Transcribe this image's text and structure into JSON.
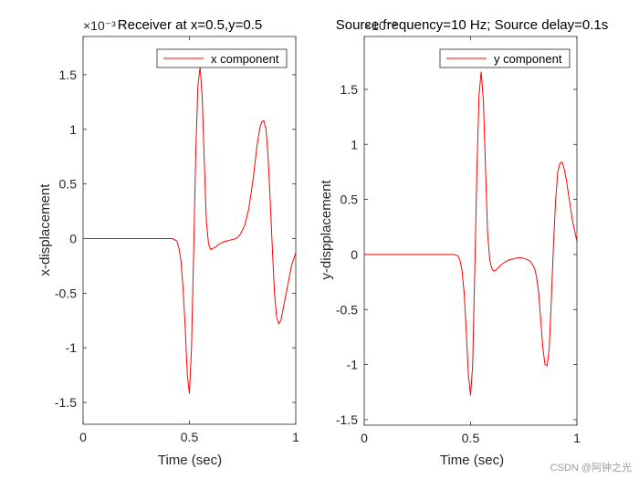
{
  "chart_data": [
    {
      "type": "line",
      "title": "Receiver at x=0.5,y=0.5",
      "xlabel": "Time (sec)",
      "ylabel": "x-displacement",
      "exponent_label": "×10⁻³",
      "xlim": [
        0,
        1
      ],
      "ylim": [
        -1.7,
        1.85
      ],
      "xticks": [
        0,
        0.5,
        1
      ],
      "xtick_labels": [
        "0",
        "0.5",
        "1"
      ],
      "yticks": [
        -1.5,
        -1,
        -0.5,
        0,
        0.5,
        1,
        1.5
      ],
      "ytick_labels": [
        "-1.5",
        "-1",
        "-0.5",
        "0",
        "0.5",
        "1",
        "1.5"
      ],
      "legend": "top-right",
      "series": [
        {
          "name": "x component",
          "color": "#ff0000",
          "x": [
            0,
            0.05,
            0.1,
            0.15,
            0.2,
            0.25,
            0.3,
            0.35,
            0.4,
            0.42,
            0.44,
            0.45,
            0.46,
            0.47,
            0.48,
            0.49,
            0.5,
            0.51,
            0.52,
            0.53,
            0.54,
            0.55,
            0.56,
            0.57,
            0.58,
            0.59,
            0.6,
            0.62,
            0.64,
            0.66,
            0.68,
            0.7,
            0.72,
            0.74,
            0.76,
            0.78,
            0.8,
            0.81,
            0.82,
            0.83,
            0.84,
            0.85,
            0.86,
            0.87,
            0.88,
            0.89,
            0.9,
            0.91,
            0.92,
            0.93,
            0.94,
            0.96,
            0.98,
            1
          ],
          "y": [
            0,
            0,
            0,
            0,
            0,
            0,
            0,
            0,
            0,
            0,
            -0.02,
            -0.08,
            -0.2,
            -0.45,
            -0.8,
            -1.25,
            -1.42,
            -1.0,
            -0.1,
            0.8,
            1.4,
            1.57,
            1.3,
            0.7,
            0.15,
            -0.05,
            -0.1,
            -0.08,
            -0.05,
            -0.03,
            -0.02,
            -0.01,
            0.0,
            0.04,
            0.12,
            0.28,
            0.55,
            0.72,
            0.88,
            1.0,
            1.07,
            1.08,
            1.0,
            0.75,
            0.35,
            -0.1,
            -0.5,
            -0.72,
            -0.78,
            -0.75,
            -0.65,
            -0.45,
            -0.25,
            -0.13
          ]
        }
      ]
    },
    {
      "type": "line",
      "title": "Source frequency=10 Hz; Source delay=0.1s",
      "xlabel": "Time (sec)",
      "ylabel": "y-dispplacement",
      "exponent_label": "×10⁻³",
      "xlim": [
        0,
        1
      ],
      "ylim": [
        -1.55,
        1.98
      ],
      "xticks": [
        0,
        0.5,
        1
      ],
      "xtick_labels": [
        "0",
        "0.5",
        "1"
      ],
      "yticks": [
        -1.5,
        -1,
        -0.5,
        0,
        0.5,
        1,
        1.5
      ],
      "ytick_labels": [
        "-1.5",
        "-1",
        "-0.5",
        "0",
        "0.5",
        "1",
        "1.5"
      ],
      "legend": "top-right",
      "series": [
        {
          "name": "y component",
          "color": "#ff0000",
          "x": [
            0,
            0.05,
            0.1,
            0.15,
            0.2,
            0.25,
            0.3,
            0.35,
            0.4,
            0.42,
            0.44,
            0.45,
            0.46,
            0.47,
            0.48,
            0.49,
            0.5,
            0.51,
            0.52,
            0.53,
            0.54,
            0.55,
            0.56,
            0.57,
            0.58,
            0.59,
            0.6,
            0.61,
            0.62,
            0.64,
            0.66,
            0.68,
            0.7,
            0.72,
            0.74,
            0.76,
            0.78,
            0.8,
            0.81,
            0.82,
            0.83,
            0.84,
            0.85,
            0.86,
            0.87,
            0.88,
            0.89,
            0.9,
            0.91,
            0.92,
            0.93,
            0.94,
            0.95,
            0.96,
            0.98,
            1
          ],
          "y": [
            0,
            0,
            0,
            0,
            0,
            0,
            0,
            0,
            0,
            0,
            -0.01,
            -0.05,
            -0.15,
            -0.35,
            -0.7,
            -1.1,
            -1.28,
            -1.0,
            -0.1,
            0.8,
            1.45,
            1.66,
            1.4,
            0.8,
            0.2,
            -0.05,
            -0.13,
            -0.15,
            -0.14,
            -0.1,
            -0.07,
            -0.05,
            -0.04,
            -0.03,
            -0.03,
            -0.04,
            -0.06,
            -0.12,
            -0.2,
            -0.35,
            -0.6,
            -0.85,
            -1.0,
            -1.01,
            -0.85,
            -0.4,
            0.1,
            0.5,
            0.75,
            0.83,
            0.84,
            0.78,
            0.68,
            0.55,
            0.3,
            0.12
          ]
        }
      ]
    }
  ],
  "watermark": "CSDN @阿钟之光"
}
